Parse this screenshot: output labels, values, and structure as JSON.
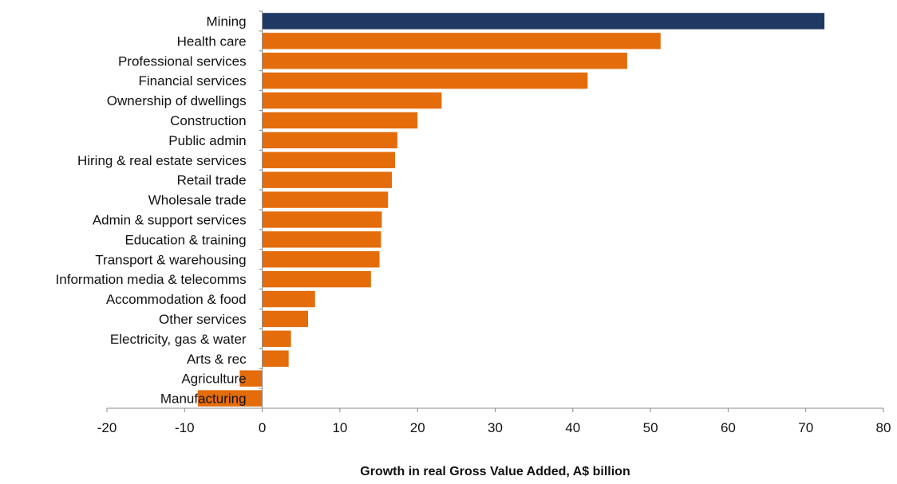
{
  "chart_data": {
    "type": "bar",
    "orientation": "horizontal",
    "categories": [
      "Mining",
      "Health care",
      "Professional services",
      "Financial services",
      "Ownership of dwellings",
      "Construction",
      "Public admin",
      "Hiring & real estate services",
      "Retail trade",
      "Wholesale trade",
      "Admin & support services",
      "Education & training",
      "Transport & warehousing",
      "Information media & telecomms",
      "Accommodation & food",
      "Other services",
      "Electricity, gas & water",
      "Arts & rec",
      "Agriculture",
      "Manufacturing"
    ],
    "values": [
      72.4,
      51.3,
      47.0,
      41.9,
      23.1,
      20.0,
      17.4,
      17.1,
      16.7,
      16.2,
      15.4,
      15.3,
      15.1,
      14.0,
      6.8,
      5.9,
      3.7,
      3.4,
      -2.9,
      -8.3
    ],
    "xlabel": "Growth in real Gross Value Added, A$ billion",
    "xlim": [
      -20,
      80
    ],
    "xticks": [
      -20,
      -10,
      0,
      10,
      20,
      30,
      40,
      50,
      60,
      70,
      80
    ],
    "colors": {
      "highlight": "#1f3864",
      "default": "#e46c0a"
    },
    "highlight_category": "Mining",
    "grid": false
  }
}
